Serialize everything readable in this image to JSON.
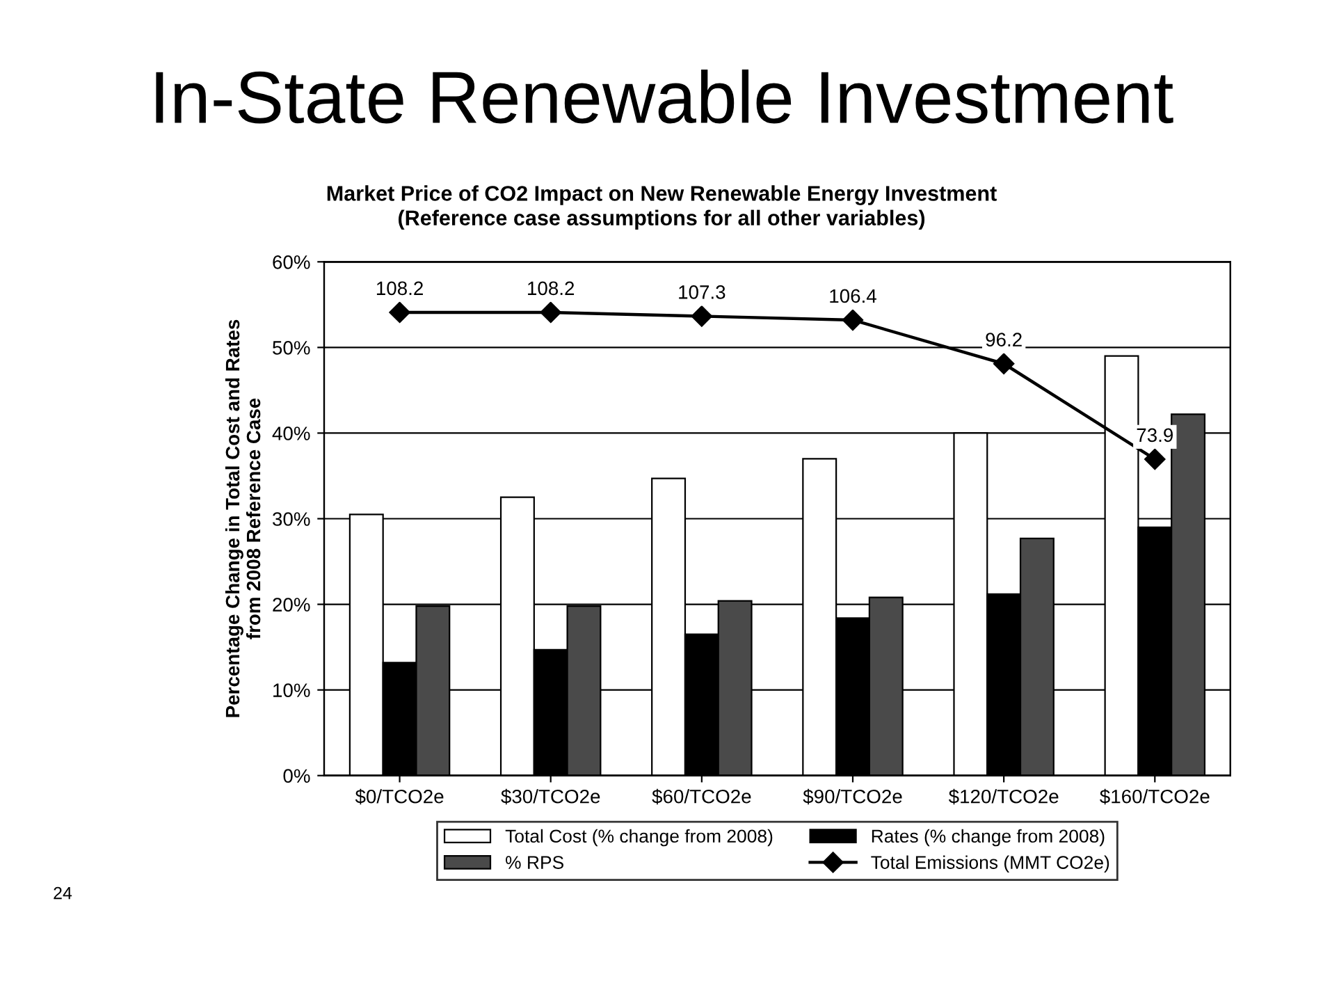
{
  "chart_data": {
    "type": "bar",
    "title": "In-State Renewable Investment",
    "subtitle": "Market Price of CO2 Impact on New Renewable Energy Investment\n(Reference case assumptions for all other variables)",
    "ylabel": "Percentage Change in Total Cost and Rates\nfrom 2008 Reference Case",
    "categories": [
      "$0/TCO2e",
      "$30/TCO2e",
      "$60/TCO2e",
      "$90/TCO2e",
      "$120/TCO2e",
      "$160/TCO2e"
    ],
    "series": [
      {
        "name": "Total Cost (% change from 2008)",
        "color": "#ffffff",
        "values": [
          30.5,
          32.5,
          34.7,
          37,
          40,
          49
        ]
      },
      {
        "name": "Rates (% change from 2008)",
        "color": "#000000",
        "values": [
          13.2,
          14.7,
          16.5,
          18.4,
          21.2,
          29
        ]
      },
      {
        "name": "% RPS",
        "color": "#4a4a4a",
        "values": [
          19.8,
          19.8,
          20.4,
          20.8,
          27.7,
          42.2
        ]
      },
      {
        "name": "Total Emissions (MMT CO2e)",
        "type": "line",
        "axis": "y2",
        "color": "#000000",
        "marker": "diamond",
        "values": [
          108.2,
          108.2,
          107.3,
          106.4,
          96.2,
          73.9
        ],
        "value_labels": [
          "108.2",
          "108.2",
          "107.3",
          "106.4",
          "96.2",
          "73.9"
        ]
      }
    ],
    "ylim": [
      0,
      60
    ],
    "yticks": [
      {
        "value": 0,
        "label": "0%"
      },
      {
        "value": 10,
        "label": "10%"
      },
      {
        "value": 20,
        "label": "20%"
      },
      {
        "value": 30,
        "label": "30%"
      },
      {
        "value": 40,
        "label": "40%"
      },
      {
        "value": 50,
        "label": "50%"
      },
      {
        "value": 60,
        "label": "60%"
      }
    ],
    "y2lim": [
      0,
      120
    ],
    "grid": "y",
    "legend": "bottom",
    "annotations": [
      "24"
    ]
  }
}
